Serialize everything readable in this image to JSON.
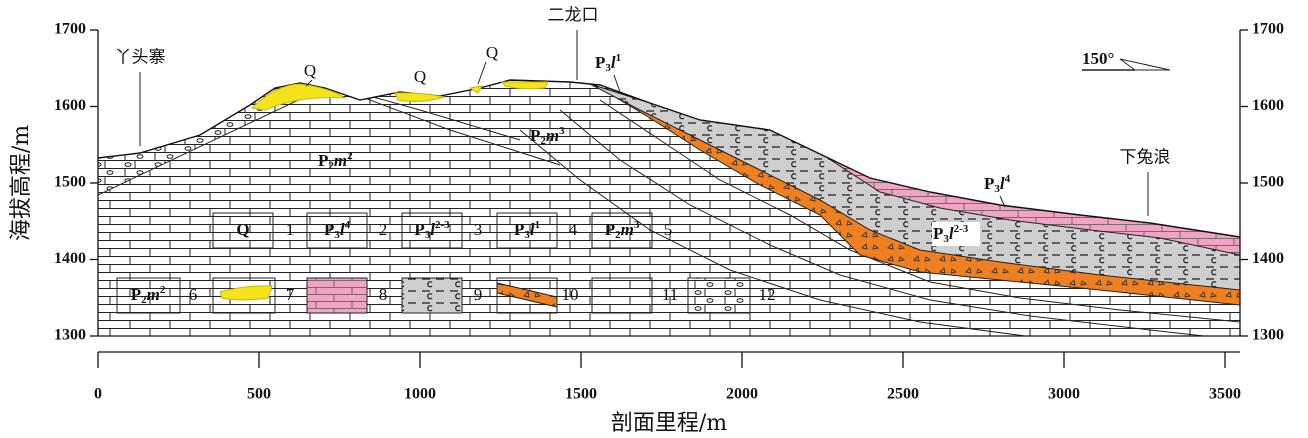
{
  "y_axis": {
    "label": "海拔高程/m",
    "ticks": [
      1300,
      1400,
      1500,
      1600,
      1700
    ]
  },
  "x_axis": {
    "label": "剖面里程/m",
    "ticks": [
      0,
      500,
      1000,
      1500,
      2000,
      2500,
      3000,
      3500
    ]
  },
  "places": [
    "丫头寨",
    "二龙口",
    "下兔浪"
  ],
  "orientation": "150°",
  "quaternary_labels": [
    "Q",
    "Q",
    "Q"
  ],
  "formation_labels": [
    {
      "parts": [
        "P",
        "3",
        "l",
        "1"
      ]
    },
    {
      "parts": [
        "P",
        "2",
        "m",
        "2"
      ]
    },
    {
      "parts": [
        "P",
        "2",
        "m",
        "3"
      ]
    },
    {
      "parts": [
        "P",
        "3",
        "l",
        "4"
      ]
    },
    {
      "parts": [
        "P",
        "3",
        "l",
        "2-3"
      ]
    }
  ],
  "legend": [
    {
      "symbol": [
        "Q"
      ],
      "number": "1"
    },
    {
      "symbol": [
        "P",
        "3",
        "l",
        "4"
      ],
      "number": "2"
    },
    {
      "symbol": [
        "P",
        "3",
        "l",
        "2-3"
      ],
      "number": "3"
    },
    {
      "symbol": [
        "P",
        "3",
        "l",
        "1"
      ],
      "number": "4"
    },
    {
      "symbol": [
        "P",
        "2",
        "m",
        "3"
      ],
      "number": "5"
    },
    {
      "symbol": [
        "P",
        "2",
        "m",
        "2"
      ],
      "number": "6"
    },
    {
      "number": "7"
    },
    {
      "number": "8"
    },
    {
      "number": "9"
    },
    {
      "number": "10"
    },
    {
      "number": "11"
    },
    {
      "number": "12"
    }
  ]
}
